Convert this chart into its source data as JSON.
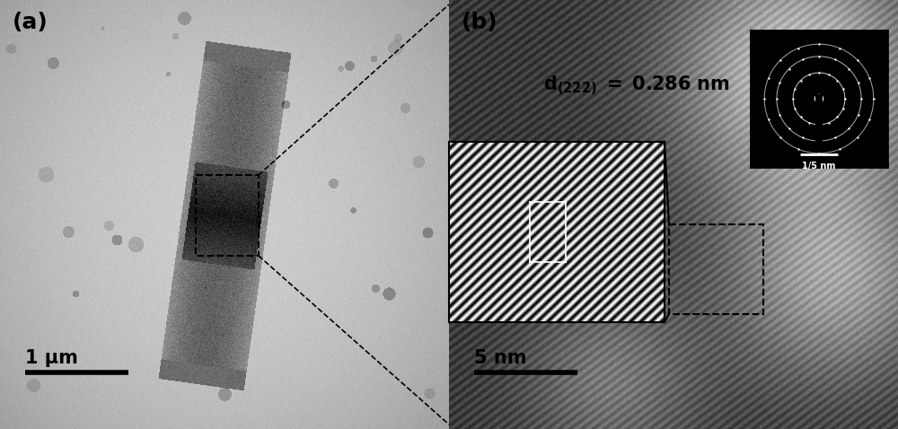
{
  "fig_width": 10.0,
  "fig_height": 4.78,
  "panel_a_label": "(a)",
  "panel_b_label": "(b)",
  "scale_bar_a_text": "1 μm",
  "scale_bar_b_text": "5 nm",
  "scale_bar_inset_text": "1/5 nm",
  "label_fontsize": 18,
  "scalebar_fontsize": 15,
  "annotation_fontsize": 15,
  "panel_a_bg": 0.8,
  "panel_b_bg": 0.25
}
